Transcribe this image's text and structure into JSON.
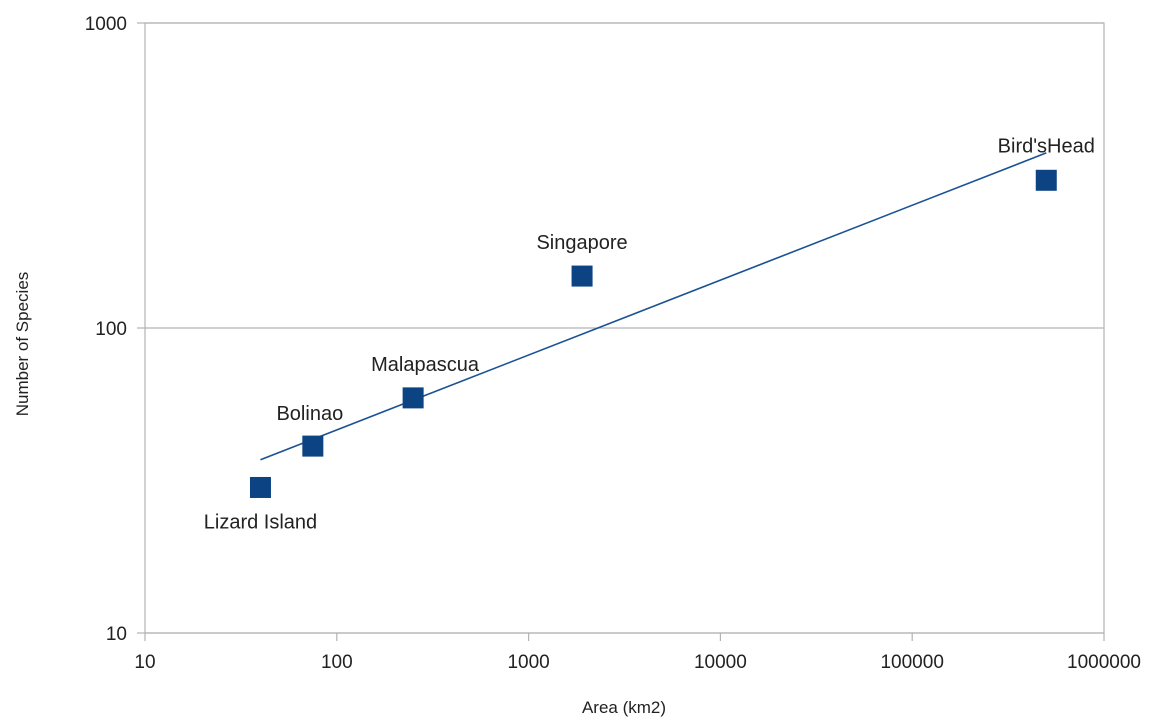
{
  "chart_data": {
    "type": "scatter",
    "title": "",
    "xlabel": "Area (km2)",
    "ylabel": "Number of Species",
    "x_scale": "log",
    "y_scale": "log",
    "xlim": [
      10,
      1000000
    ],
    "ylim": [
      10,
      1000
    ],
    "x_ticks": [
      "10",
      "100",
      "1000",
      "10000",
      "100000",
      "1000000"
    ],
    "y_ticks": [
      "10",
      "100",
      "1000"
    ],
    "grid": "horizontal",
    "points": [
      {
        "label": "Lizard Island",
        "x": 40,
        "y": 30
      },
      {
        "label": "Bolinao",
        "x": 75,
        "y": 41
      },
      {
        "label": "Malapascua",
        "x": 250,
        "y": 59
      },
      {
        "label": "Singapore",
        "x": 1900,
        "y": 148
      },
      {
        "label": "Bird'sHead",
        "x": 500000,
        "y": 305
      }
    ],
    "trendline": {
      "x": [
        40,
        500000
      ],
      "y": [
        37,
        375
      ]
    },
    "colors": {
      "marker": "#0b4383",
      "trendline": "#1a5294",
      "grid": "#b3b3b3"
    }
  }
}
